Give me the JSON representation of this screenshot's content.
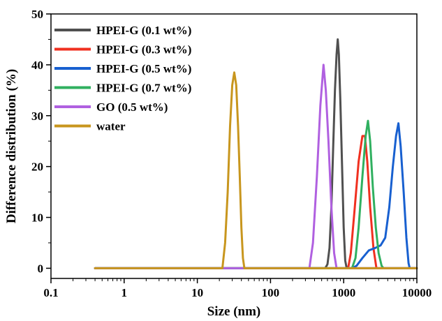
{
  "chart_data": {
    "type": "line",
    "xlabel": "Size (nm)",
    "ylabel": "Difference distribution (%)",
    "xscale": "log",
    "xlim": [
      0.1,
      10000
    ],
    "ylim": [
      -2,
      50
    ],
    "xticks": [
      {
        "value": 0.1,
        "label": "0.1"
      },
      {
        "value": 1,
        "label": "1"
      },
      {
        "value": 10,
        "label": "10"
      },
      {
        "value": 100,
        "label": "100"
      },
      {
        "value": 1000,
        "label": "1000"
      },
      {
        "value": 10000,
        "label": "10000"
      }
    ],
    "yticks": [
      {
        "value": 0,
        "label": "0"
      },
      {
        "value": 10,
        "label": "10"
      },
      {
        "value": 20,
        "label": "20"
      },
      {
        "value": 30,
        "label": "30"
      },
      {
        "value": 40,
        "label": "40"
      },
      {
        "value": 50,
        "label": "50"
      }
    ],
    "grid": false,
    "legend_position": "top-left",
    "series": [
      {
        "name": "HPEI-G (0.1 wt%)",
        "color": "#505050",
        "points": [
          [
            0.4,
            0
          ],
          [
            560,
            0
          ],
          [
            600,
            0.8
          ],
          [
            640,
            4
          ],
          [
            680,
            12
          ],
          [
            720,
            24
          ],
          [
            760,
            35
          ],
          [
            800,
            42
          ],
          [
            830,
            45
          ],
          [
            860,
            42
          ],
          [
            900,
            33
          ],
          [
            950,
            20
          ],
          [
            1000,
            8
          ],
          [
            1050,
            1.5
          ],
          [
            1100,
            0
          ],
          [
            10000,
            0
          ]
        ]
      },
      {
        "name": "HPEI-G (0.3 wt%)",
        "color": "#f03020",
        "points": [
          [
            0.4,
            0
          ],
          [
            1150,
            0
          ],
          [
            1250,
            3
          ],
          [
            1400,
            11
          ],
          [
            1600,
            21
          ],
          [
            1800,
            26
          ],
          [
            1950,
            26
          ],
          [
            2100,
            21
          ],
          [
            2300,
            12
          ],
          [
            2550,
            4
          ],
          [
            2800,
            0
          ],
          [
            10000,
            0
          ]
        ]
      },
      {
        "name": "HPEI-G (0.5 wt%)",
        "color": "#1860d0",
        "points": [
          [
            0.4,
            0
          ],
          [
            1300,
            0
          ],
          [
            1500,
            0.5
          ],
          [
            1800,
            2
          ],
          [
            2200,
            3.5
          ],
          [
            2700,
            4
          ],
          [
            3200,
            4.5
          ],
          [
            3700,
            6
          ],
          [
            4200,
            12
          ],
          [
            4700,
            20
          ],
          [
            5200,
            26
          ],
          [
            5600,
            28.5
          ],
          [
            6000,
            24
          ],
          [
            6600,
            15
          ],
          [
            7200,
            6
          ],
          [
            7700,
            1
          ],
          [
            8000,
            0
          ],
          [
            10000,
            0
          ]
        ]
      },
      {
        "name": "HPEI-G (0.7 wt%)",
        "color": "#30b060",
        "points": [
          [
            0.4,
            0
          ],
          [
            1300,
            0
          ],
          [
            1450,
            2
          ],
          [
            1600,
            8
          ],
          [
            1800,
            18
          ],
          [
            2000,
            26
          ],
          [
            2150,
            29
          ],
          [
            2300,
            25
          ],
          [
            2500,
            16
          ],
          [
            2750,
            8
          ],
          [
            3000,
            3
          ],
          [
            3300,
            0.5
          ],
          [
            3500,
            0
          ],
          [
            10000,
            0
          ]
        ]
      },
      {
        "name": "GO (0.5 wt%)",
        "color": "#b060e0",
        "points": [
          [
            0.4,
            0
          ],
          [
            340,
            0
          ],
          [
            380,
            5
          ],
          [
            430,
            18
          ],
          [
            480,
            32
          ],
          [
            530,
            40
          ],
          [
            570,
            35
          ],
          [
            620,
            25
          ],
          [
            680,
            12
          ],
          [
            740,
            3
          ],
          [
            800,
            0
          ],
          [
            10000,
            0
          ]
        ]
      },
      {
        "name": "water",
        "color": "#c8961e",
        "points": [
          [
            0.4,
            0
          ],
          [
            22,
            0
          ],
          [
            24,
            5
          ],
          [
            26,
            15
          ],
          [
            28,
            28
          ],
          [
            30,
            36
          ],
          [
            32,
            38.5
          ],
          [
            34,
            36
          ],
          [
            36,
            28
          ],
          [
            38,
            18
          ],
          [
            40,
            8
          ],
          [
            42,
            2
          ],
          [
            44,
            0
          ],
          [
            10000,
            0
          ]
        ]
      }
    ]
  }
}
